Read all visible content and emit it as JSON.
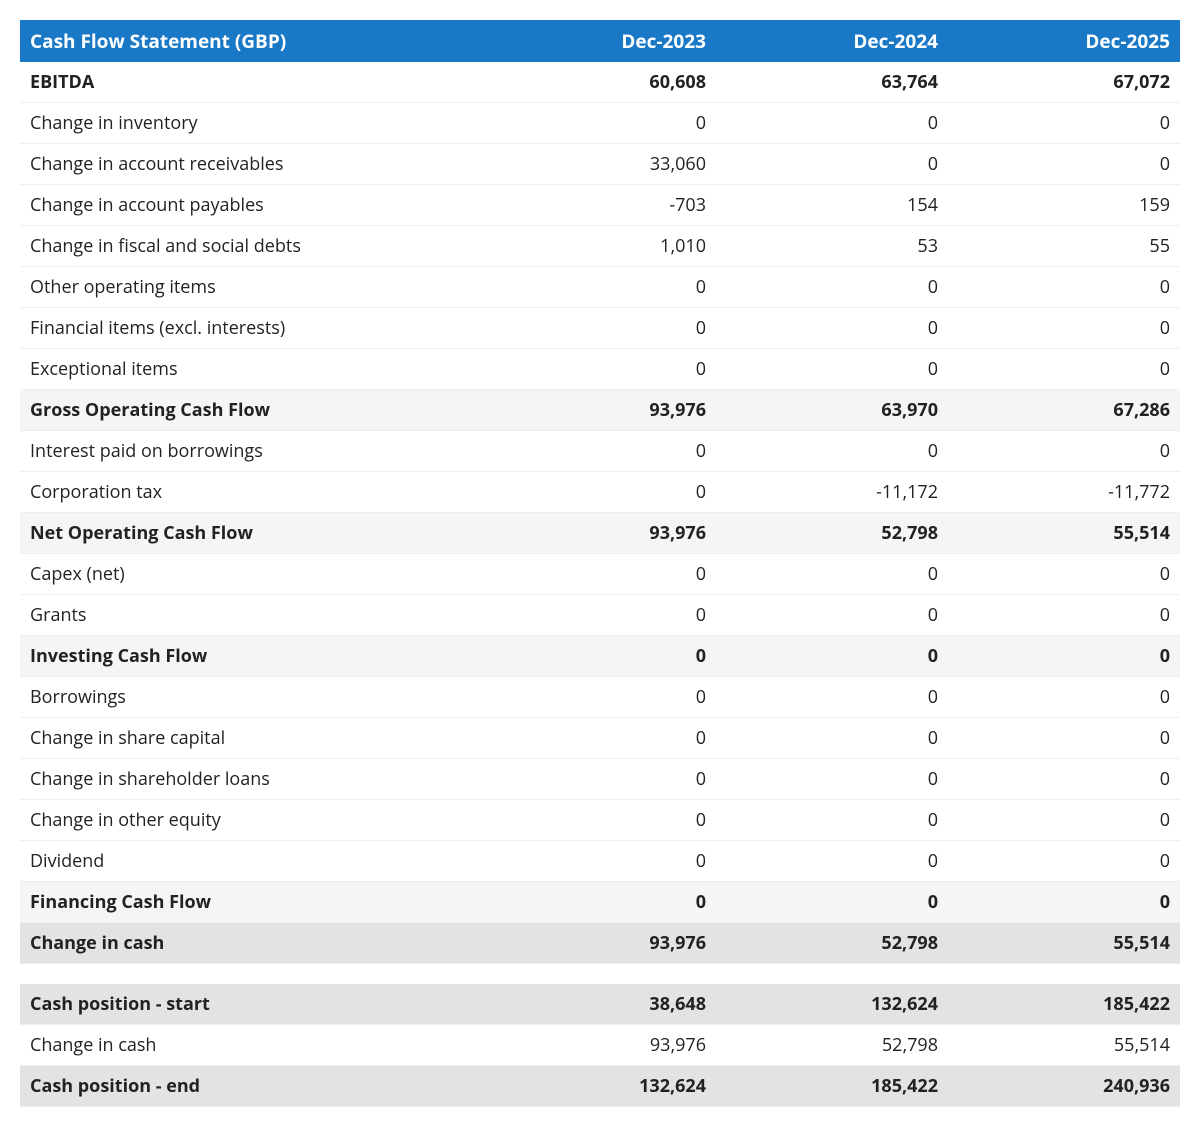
{
  "table": {
    "type": "table",
    "background_color": "#ffffff",
    "header_bg": "#1a79c7",
    "header_text_color": "#ffffff",
    "row_border_color": "#eeeeee",
    "shade_bg": "#f5f5f5",
    "shade2_bg": "#e3e3e3",
    "font_family": "Segoe UI / Open Sans / Arial",
    "header_fontsize": 19,
    "body_fontsize": 18,
    "columns": [
      {
        "key": "label",
        "header": "Cash Flow Statement (GBP)",
        "align": "left",
        "width_pct": 40
      },
      {
        "key": "y1",
        "header": "Dec-2023",
        "align": "right",
        "width_pct": 20
      },
      {
        "key": "y2",
        "header": "Dec-2024",
        "align": "right",
        "width_pct": 20
      },
      {
        "key": "y3",
        "header": "Dec-2025",
        "align": "right",
        "width_pct": 20
      }
    ],
    "rows": [
      {
        "label": "EBITDA",
        "y1": "60,608",
        "y2": "63,764",
        "y3": "67,072",
        "style": "bold"
      },
      {
        "label": "Change in inventory",
        "y1": "0",
        "y2": "0",
        "y3": "0",
        "style": "normal"
      },
      {
        "label": "Change in account receivables",
        "y1": "33,060",
        "y2": "0",
        "y3": "0",
        "style": "normal"
      },
      {
        "label": "Change in account payables",
        "y1": "-703",
        "y2": "154",
        "y3": "159",
        "style": "normal"
      },
      {
        "label": "Change in fiscal and social debts",
        "y1": "1,010",
        "y2": "53",
        "y3": "55",
        "style": "normal"
      },
      {
        "label": "Other operating items",
        "y1": "0",
        "y2": "0",
        "y3": "0",
        "style": "normal"
      },
      {
        "label": "Financial items (excl. interests)",
        "y1": "0",
        "y2": "0",
        "y3": "0",
        "style": "normal"
      },
      {
        "label": "Exceptional items",
        "y1": "0",
        "y2": "0",
        "y3": "0",
        "style": "normal"
      },
      {
        "label": "Gross Operating Cash Flow",
        "y1": "93,976",
        "y2": "63,970",
        "y3": "67,286",
        "style": "bold shade"
      },
      {
        "label": "Interest paid on borrowings",
        "y1": "0",
        "y2": "0",
        "y3": "0",
        "style": "normal"
      },
      {
        "label": "Corporation tax",
        "y1": "0",
        "y2": "-11,172",
        "y3": "-11,772",
        "style": "normal"
      },
      {
        "label": "Net Operating Cash Flow",
        "y1": "93,976",
        "y2": "52,798",
        "y3": "55,514",
        "style": "bold shade"
      },
      {
        "label": "Capex (net)",
        "y1": "0",
        "y2": "0",
        "y3": "0",
        "style": "normal"
      },
      {
        "label": "Grants",
        "y1": "0",
        "y2": "0",
        "y3": "0",
        "style": "normal"
      },
      {
        "label": "Investing Cash Flow",
        "y1": "0",
        "y2": "0",
        "y3": "0",
        "style": "bold shade"
      },
      {
        "label": "Borrowings",
        "y1": "0",
        "y2": "0",
        "y3": "0",
        "style": "normal"
      },
      {
        "label": "Change in share capital",
        "y1": "0",
        "y2": "0",
        "y3": "0",
        "style": "normal"
      },
      {
        "label": "Change in shareholder loans",
        "y1": "0",
        "y2": "0",
        "y3": "0",
        "style": "normal"
      },
      {
        "label": "Change in other equity",
        "y1": "0",
        "y2": "0",
        "y3": "0",
        "style": "normal"
      },
      {
        "label": "Dividend",
        "y1": "0",
        "y2": "0",
        "y3": "0",
        "style": "normal"
      },
      {
        "label": "Financing Cash Flow",
        "y1": "0",
        "y2": "0",
        "y3": "0",
        "style": "bold shade"
      },
      {
        "label": "Change in cash",
        "y1": "93,976",
        "y2": "52,798",
        "y3": "55,514",
        "style": "bold shade2"
      },
      {
        "label": "",
        "y1": "",
        "y2": "",
        "y3": "",
        "style": "spacer"
      },
      {
        "label": "Cash position - start",
        "y1": "38,648",
        "y2": "132,624",
        "y3": "185,422",
        "style": "bold shade2"
      },
      {
        "label": "Change in cash",
        "y1": "93,976",
        "y2": "52,798",
        "y3": "55,514",
        "style": "normal"
      },
      {
        "label": "Cash position - end",
        "y1": "132,624",
        "y2": "185,422",
        "y3": "240,936",
        "style": "bold shade2"
      }
    ]
  }
}
